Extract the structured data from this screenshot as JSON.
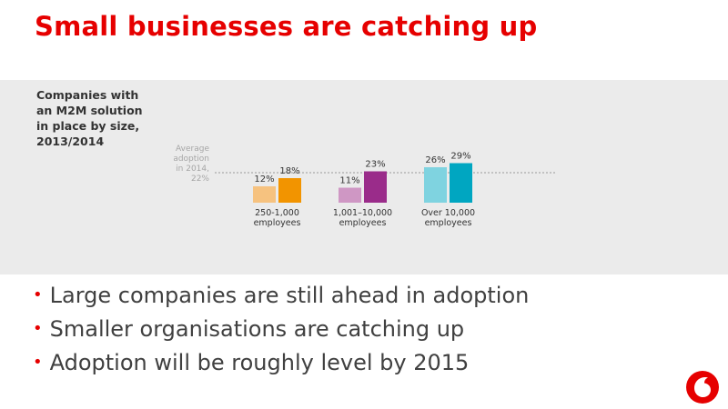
{
  "slide": {
    "title": "Small businesses are catching up"
  },
  "chart_data": {
    "type": "bar",
    "title_lines": [
      "Companies with",
      "an M2M solution",
      "in place by size,",
      "2013/2014"
    ],
    "categories": [
      [
        "250-1,000",
        "employees"
      ],
      [
        "1,001–10,000",
        "employees"
      ],
      [
        "Over 10,000",
        "employees"
      ]
    ],
    "series": [
      {
        "values": [
          12,
          11,
          26
        ],
        "colors": [
          "#f6c27f",
          "#cf97c4",
          "#7fd3e0"
        ]
      },
      {
        "values": [
          18,
          23,
          29
        ],
        "colors": [
          "#f29400",
          "#9a2c8a",
          "#00a6c1"
        ]
      }
    ],
    "data_labels": [
      [
        "12%",
        "11%",
        "26%"
      ],
      [
        "18%",
        "23%",
        "29%"
      ]
    ],
    "reference_line": {
      "value": 22,
      "label_lines": [
        "Average",
        "adoption",
        "in 2014,",
        "22%"
      ]
    },
    "ylim": [
      0,
      30
    ],
    "grid": false,
    "legend": "none"
  },
  "bullets": [
    {
      "text": "Large companies are still ahead in adoption"
    },
    {
      "text": "Smaller organisations are catching up"
    },
    {
      "text": "Adoption will be roughly level by 2015"
    }
  ],
  "colors": {
    "accent": "#e60000",
    "panel": "#ebebeb",
    "text": "#404040"
  },
  "icons": {
    "logo": "vodafone-speechmark-icon"
  }
}
